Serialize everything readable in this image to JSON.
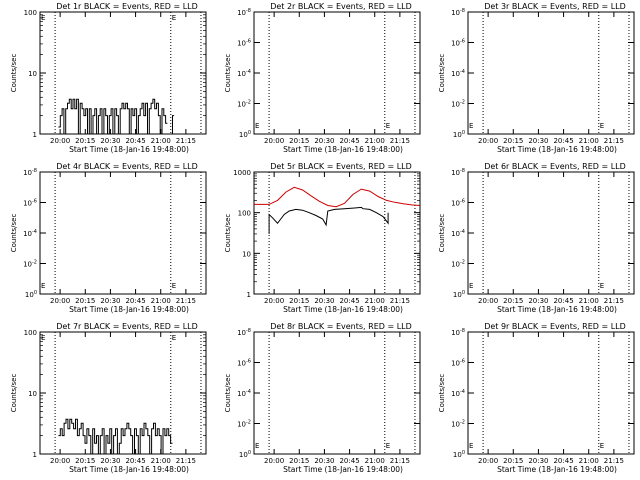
{
  "colors": {
    "events": "#000000",
    "lld": "#cc0000",
    "background": "#ffffff",
    "axis": "#000000"
  },
  "chart_data": [
    {
      "type": "line",
      "title": "Det 1r BLACK = Events, RED = LLD",
      "ylabel": "Counts/sec",
      "xlabel": "Start Time (18-Jan-16 19:48:00)",
      "x_ticks": [
        "20:00",
        "20:15",
        "20:30",
        "20:45",
        "21:00",
        "21:15"
      ],
      "y_scale": "log",
      "y_ticks": [
        "1",
        "10",
        "100"
      ],
      "ylim": [
        1,
        100
      ],
      "xlim": [
        "19:48",
        "21:27"
      ],
      "markers": [
        "19:57",
        "21:06",
        "21:24"
      ],
      "letter_e": "E",
      "series": [
        {
          "color": "#000000",
          "kind": "steps",
          "x_start": "19:59",
          "x_end": "21:04",
          "values": [
            1.3,
            2,
            2.6,
            1,
            2.6,
            3.2,
            3.7,
            2.6,
            3.7,
            2.6,
            3.7,
            1,
            3.2,
            2.6,
            2,
            2.6,
            1,
            2.6,
            1,
            2,
            2.6,
            1,
            2,
            2.6,
            1,
            2.6,
            2,
            1,
            2,
            2.6,
            1,
            2.6,
            2,
            1,
            2.6,
            3.2,
            2.6,
            3.2,
            2.6,
            1,
            2.6,
            2,
            2.6,
            1,
            2,
            2.6,
            3.2,
            2,
            3.2,
            1,
            2.6,
            3.2,
            3.7,
            2.6,
            3.2,
            2,
            1,
            2.6,
            2,
            1.5
          ]
        },
        {
          "color": "#000000",
          "kind": "steps",
          "x_start": "21:06",
          "x_end": "21:08",
          "values": [
            1,
            2
          ]
        }
      ]
    },
    {
      "type": "line",
      "title": "Det 2r BLACK = Events, RED = LLD",
      "ylabel": "Counts/sec",
      "xlabel": "Start Time (18-Jan-16 19:48:00)",
      "x_ticks": [
        "20:00",
        "20:15",
        "20:30",
        "20:45",
        "21:00",
        "21:15"
      ],
      "y_scale": "log",
      "y_ticks": [
        "10⁰",
        "10⁻²",
        "10⁻⁴",
        "10⁻⁶",
        "10⁻⁸"
      ],
      "xlim": [
        "19:48",
        "21:27"
      ],
      "markers": [
        "19:57",
        "21:06",
        "21:24"
      ],
      "letter_e": "E",
      "series": []
    },
    {
      "type": "line",
      "title": "Det 3r BLACK = Events, RED = LLD",
      "ylabel": "Counts/sec",
      "xlabel": "Start Time (18-Jan-16 19:48:00)",
      "x_ticks": [
        "20:00",
        "20:15",
        "20:30",
        "20:45",
        "21:00",
        "21:15"
      ],
      "y_scale": "log",
      "y_ticks": [
        "10⁰",
        "10⁻²",
        "10⁻⁴",
        "10⁻⁶",
        "10⁻⁸"
      ],
      "xlim": [
        "19:48",
        "21:27"
      ],
      "markers": [
        "19:57",
        "21:06",
        "21:24"
      ],
      "letter_e": "E",
      "series": []
    },
    {
      "type": "line",
      "title": "Det 4r BLACK = Events, RED = LLD",
      "ylabel": "Counts/sec",
      "xlabel": "Start Time (18-Jan-16 19:48:00)",
      "x_ticks": [
        "20:00",
        "20:15",
        "20:30",
        "20:45",
        "21:00",
        "21:15"
      ],
      "y_scale": "log",
      "y_ticks": [
        "10⁰",
        "10⁻²",
        "10⁻⁴",
        "10⁻⁶",
        "10⁻⁸"
      ],
      "xlim": [
        "19:48",
        "21:27"
      ],
      "markers": [
        "19:57",
        "21:06",
        "21:24"
      ],
      "letter_e": "E",
      "series": []
    },
    {
      "type": "line",
      "title": "Det 5r BLACK = Events, RED = LLD",
      "ylabel": "Counts/sec",
      "xlabel": "Start Time (18-Jan-16 19:48:00)",
      "x_ticks": [
        "20:00",
        "20:15",
        "20:30",
        "20:45",
        "21:00",
        "21:15"
      ],
      "y_scale": "log",
      "y_ticks": [
        "1",
        "10",
        "100",
        "1000"
      ],
      "ylim": [
        1,
        1000
      ],
      "xlim": [
        "19:48",
        "21:27"
      ],
      "markers": [
        "19:57",
        "21:06",
        "21:24"
      ],
      "letter_e": "",
      "series": [
        {
          "color": "#cc0000",
          "kind": "line",
          "name": "LLD",
          "points": [
            [
              "19:48",
              160
            ],
            [
              "19:57",
              160
            ],
            [
              "20:02",
              200
            ],
            [
              "20:07",
              320
            ],
            [
              "20:12",
              420
            ],
            [
              "20:17",
              360
            ],
            [
              "20:22",
              260
            ],
            [
              "20:27",
              190
            ],
            [
              "20:32",
              150
            ],
            [
              "20:37",
              140
            ],
            [
              "20:42",
              170
            ],
            [
              "20:47",
              280
            ],
            [
              "20:52",
              380
            ],
            [
              "20:57",
              340
            ],
            [
              "21:02",
              250
            ],
            [
              "21:07",
              200
            ],
            [
              "21:12",
              180
            ],
            [
              "21:17",
              165
            ],
            [
              "21:22",
              155
            ],
            [
              "21:27",
              150
            ]
          ]
        },
        {
          "color": "#000000",
          "kind": "line",
          "name": "Events",
          "points": [
            [
              "19:57",
              30
            ],
            [
              "19:57",
              90
            ],
            [
              "19:59",
              75
            ],
            [
              "20:02",
              55
            ],
            [
              "20:04",
              70
            ],
            [
              "20:06",
              90
            ],
            [
              "20:09",
              110
            ],
            [
              "20:13",
              120
            ],
            [
              "20:17",
              115
            ],
            [
              "20:21",
              100
            ],
            [
              "20:25",
              85
            ],
            [
              "20:29",
              70
            ],
            [
              "20:31",
              50
            ],
            [
              "20:32",
              110
            ],
            [
              "20:36",
              120
            ],
            [
              "20:42",
              125
            ],
            [
              "20:48",
              130
            ],
            [
              "20:52",
              135
            ],
            [
              "20:53",
              125
            ],
            [
              "20:57",
              120
            ],
            [
              "21:01",
              100
            ],
            [
              "21:05",
              80
            ],
            [
              "21:08",
              55
            ],
            [
              "21:08",
              100
            ]
          ]
        }
      ]
    },
    {
      "type": "line",
      "title": "Det 6r BLACK = Events, RED = LLD",
      "ylabel": "Counts/sec",
      "xlabel": "Start Time (18-Jan-16 19:48:00)",
      "x_ticks": [
        "20:00",
        "20:15",
        "20:30",
        "20:45",
        "21:00",
        "21:15"
      ],
      "y_scale": "log",
      "y_ticks": [
        "10⁰",
        "10⁻²",
        "10⁻⁴",
        "10⁻⁶",
        "10⁻⁸"
      ],
      "xlim": [
        "19:48",
        "21:27"
      ],
      "markers": [
        "19:57",
        "21:06",
        "21:24"
      ],
      "letter_e": "E",
      "series": []
    },
    {
      "type": "line",
      "title": "Det 7r BLACK = Events, RED = LLD",
      "ylabel": "Counts/sec",
      "xlabel": "Start Time (18-Jan-16 19:48:00)",
      "x_ticks": [
        "20:00",
        "20:15",
        "20:30",
        "20:45",
        "21:00",
        "21:15"
      ],
      "y_scale": "log",
      "y_ticks": [
        "1",
        "10",
        "100"
      ],
      "ylim": [
        1,
        100
      ],
      "xlim": [
        "19:48",
        "21:27"
      ],
      "markers": [
        "19:57",
        "21:06",
        "21:24"
      ],
      "letter_e": "E",
      "series": [
        {
          "color": "#000000",
          "kind": "steps",
          "x_start": "19:59",
          "x_end": "21:07",
          "values": [
            2,
            2.6,
            2,
            3.2,
            3.7,
            2.6,
            3.7,
            3.2,
            2.6,
            3.7,
            2,
            2.6,
            3.2,
            2,
            1.5,
            2.6,
            2,
            1,
            2.6,
            1.5,
            2,
            1,
            2,
            2.6,
            1,
            2,
            1.5,
            2.6,
            1,
            2,
            2.6,
            1,
            1.5,
            2.6,
            2,
            2.6,
            3.2,
            2.6,
            2,
            1,
            2.6,
            2,
            1,
            2.6,
            2,
            3.2,
            2.6,
            2,
            1,
            2.6,
            3.2,
            2,
            2.6,
            2,
            1,
            2.6,
            2,
            2.6,
            2,
            1.5
          ]
        }
      ]
    },
    {
      "type": "line",
      "title": "Det 8r BLACK = Events, RED = LLD",
      "ylabel": "Counts/sec",
      "xlabel": "Start Time (18-Jan-16 19:48:00)",
      "x_ticks": [
        "20:00",
        "20:15",
        "20:30",
        "20:45",
        "21:00",
        "21:15"
      ],
      "y_scale": "log",
      "y_ticks": [
        "10⁰",
        "10⁻²",
        "10⁻⁴",
        "10⁻⁶",
        "10⁻⁸"
      ],
      "xlim": [
        "19:48",
        "21:27"
      ],
      "markers": [
        "19:57",
        "21:06",
        "21:24"
      ],
      "letter_e": "E",
      "series": []
    },
    {
      "type": "line",
      "title": "Det 9r BLACK = Events, RED = LLD",
      "ylabel": "Counts/sec",
      "xlabel": "Start Time (18-Jan-16 19:48:00)",
      "x_ticks": [
        "20:00",
        "20:15",
        "20:30",
        "20:45",
        "21:00",
        "21:15"
      ],
      "y_scale": "log",
      "y_ticks": [
        "10⁰",
        "10⁻²",
        "10⁻⁴",
        "10⁻⁶",
        "10⁻⁸"
      ],
      "xlim": [
        "19:48",
        "21:27"
      ],
      "markers": [
        "19:57",
        "21:06",
        "21:24"
      ],
      "letter_e": "E",
      "series": []
    }
  ]
}
